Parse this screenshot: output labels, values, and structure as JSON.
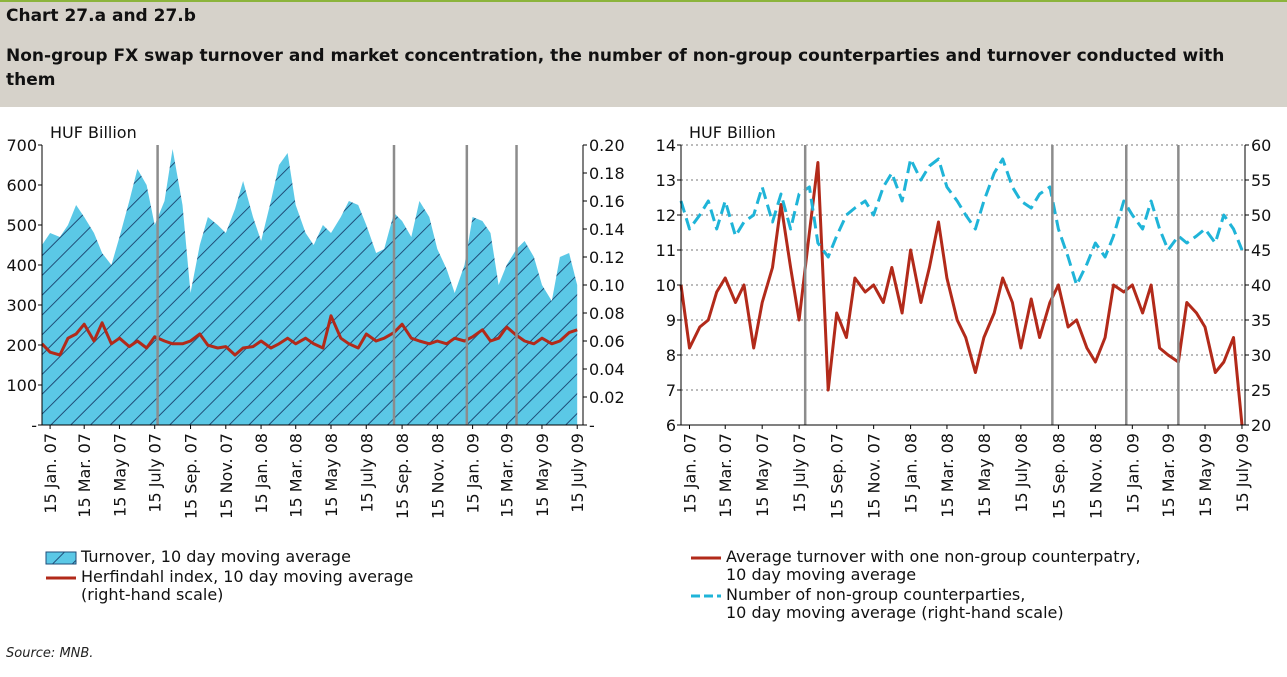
{
  "header": {
    "title": "Chart 27.a and 27.b",
    "subtitle": "Non-group FX swap turnover and market concentration, the number of non-group counterparties and turnover conducted with them"
  },
  "source": "Source: MNB.",
  "chart_data": [
    {
      "type": "combo",
      "ylabel": "HUF Billion",
      "x": [
        "2007-01-01",
        "2007-01-15",
        "2007-02-01",
        "2007-02-15",
        "2007-03-01",
        "2007-03-15",
        "2007-04-01",
        "2007-04-15",
        "2007-05-01",
        "2007-05-15",
        "2007-06-01",
        "2007-06-15",
        "2007-07-01",
        "2007-07-15",
        "2007-08-01",
        "2007-08-15",
        "2007-09-01",
        "2007-09-15",
        "2007-10-01",
        "2007-10-15",
        "2007-11-01",
        "2007-11-15",
        "2007-12-01",
        "2007-12-15",
        "2008-01-01",
        "2008-01-15",
        "2008-02-01",
        "2008-02-15",
        "2008-03-01",
        "2008-03-15",
        "2008-04-01",
        "2008-04-15",
        "2008-05-01",
        "2008-05-15",
        "2008-06-01",
        "2008-06-15",
        "2008-07-01",
        "2008-07-15",
        "2008-08-01",
        "2008-08-15",
        "2008-09-01",
        "2008-09-15",
        "2008-10-01",
        "2008-10-15",
        "2008-11-01",
        "2008-11-15",
        "2008-12-01",
        "2008-12-15",
        "2009-01-01",
        "2009-01-15",
        "2009-02-01",
        "2009-02-15",
        "2009-03-01",
        "2009-03-15",
        "2009-04-01",
        "2009-04-15",
        "2009-05-01",
        "2009-05-15",
        "2009-06-01",
        "2009-06-15",
        "2009-07-01",
        "2009-07-15"
      ],
      "xlim": [
        "2007-01-01",
        "2009-07-25"
      ],
      "xticks": [
        {
          "value": "2007-01-15",
          "label": "15 Jan. 07"
        },
        {
          "value": "2007-03-15",
          "label": "15 Mar. 07"
        },
        {
          "value": "2007-05-15",
          "label": "15 May 07"
        },
        {
          "value": "2007-07-15",
          "label": "15 July 07"
        },
        {
          "value": "2007-09-15",
          "label": "15 Sep. 07"
        },
        {
          "value": "2007-11-15",
          "label": "15 Nov. 07"
        },
        {
          "value": "2008-01-15",
          "label": "15 Jan. 08"
        },
        {
          "value": "2008-03-15",
          "label": "15 Mar. 08"
        },
        {
          "value": "2008-05-15",
          "label": "15 May 08"
        },
        {
          "value": "2008-07-15",
          "label": "15 July 08"
        },
        {
          "value": "2008-09-15",
          "label": "15 Sep. 08"
        },
        {
          "value": "2008-11-15",
          "label": "15 Nov. 08"
        },
        {
          "value": "2009-01-15",
          "label": "15 Jan. 09"
        },
        {
          "value": "2009-03-15",
          "label": "15 Mar. 09"
        },
        {
          "value": "2009-05-15",
          "label": "15 May 09"
        },
        {
          "value": "2009-07-15",
          "label": "15 July 09"
        }
      ],
      "ylim": [
        0,
        700
      ],
      "yticks": [
        {
          "value": 0,
          "label": "-"
        },
        100,
        200,
        300,
        400,
        500,
        600,
        700
      ],
      "y2lim": [
        0,
        0.2
      ],
      "y2ticks": [
        {
          "value": 0,
          "label": "-"
        },
        0.02,
        0.04,
        0.06,
        0.08,
        {
          "value": 0.1,
          "label": "0.10"
        },
        0.12,
        0.14,
        0.16,
        0.18,
        {
          "value": 0.2,
          "label": "0.20"
        }
      ],
      "grid": false,
      "vlines": [
        "2007-07-20",
        "2008-09-01",
        "2009-01-05",
        "2009-04-01"
      ],
      "series": [
        {
          "name": "Turnover, 10 day moving average",
          "kind": "area",
          "color": "#5bc8e6",
          "hatch": "#1f4e79",
          "values": [
            450,
            480,
            470,
            500,
            550,
            520,
            480,
            430,
            400,
            470,
            560,
            640,
            600,
            500,
            560,
            690,
            550,
            330,
            450,
            520,
            500,
            480,
            540,
            610,
            520,
            460,
            560,
            650,
            680,
            550,
            480,
            450,
            500,
            480,
            520,
            560,
            550,
            500,
            430,
            440,
            530,
            510,
            470,
            560,
            520,
            440,
            390,
            330,
            400,
            520,
            510,
            480,
            350,
            400,
            440,
            460,
            420,
            350,
            310,
            420,
            430,
            350
          ]
        },
        {
          "name": "Herfindahl index, 10 day moving average\n(right-hand scale)",
          "kind": "line",
          "axis": "y2",
          "color": "#b22a1a",
          "values": [
            0.058,
            0.052,
            0.05,
            0.062,
            0.065,
            0.072,
            0.06,
            0.073,
            0.058,
            0.062,
            0.056,
            0.06,
            0.055,
            0.063,
            0.06,
            0.058,
            0.058,
            0.06,
            0.065,
            0.057,
            0.055,
            0.056,
            0.05,
            0.055,
            0.056,
            0.06,
            0.055,
            0.058,
            0.062,
            0.058,
            0.062,
            0.058,
            0.055,
            0.078,
            0.062,
            0.058,
            0.055,
            0.065,
            0.06,
            0.062,
            0.066,
            0.072,
            0.062,
            0.06,
            0.058,
            0.06,
            0.058,
            0.062,
            0.06,
            0.063,
            0.068,
            0.06,
            0.062,
            0.07,
            0.064,
            0.06,
            0.058,
            0.062,
            0.058,
            0.06,
            0.066,
            0.068
          ]
        }
      ]
    },
    {
      "type": "line",
      "ylabel": "HUF Billion",
      "x": [
        "2007-01-01",
        "2007-01-15",
        "2007-02-01",
        "2007-02-15",
        "2007-03-01",
        "2007-03-15",
        "2007-04-01",
        "2007-04-15",
        "2007-05-01",
        "2007-05-15",
        "2007-06-01",
        "2007-06-15",
        "2007-07-01",
        "2007-07-15",
        "2007-08-01",
        "2007-08-15",
        "2007-09-01",
        "2007-09-15",
        "2007-10-01",
        "2007-10-15",
        "2007-11-01",
        "2007-11-15",
        "2007-12-01",
        "2007-12-15",
        "2008-01-01",
        "2008-01-15",
        "2008-02-01",
        "2008-02-15",
        "2008-03-01",
        "2008-03-15",
        "2008-04-01",
        "2008-04-15",
        "2008-05-01",
        "2008-05-15",
        "2008-06-01",
        "2008-06-15",
        "2008-07-01",
        "2008-07-15",
        "2008-08-01",
        "2008-08-15",
        "2008-09-01",
        "2008-09-15",
        "2008-10-01",
        "2008-10-15",
        "2008-11-01",
        "2008-11-15",
        "2008-12-01",
        "2008-12-15",
        "2009-01-01",
        "2009-01-15",
        "2009-02-01",
        "2009-02-15",
        "2009-03-01",
        "2009-03-15",
        "2009-04-01",
        "2009-04-15",
        "2009-05-01",
        "2009-05-15",
        "2009-06-01",
        "2009-06-15",
        "2009-07-01",
        "2009-07-15"
      ],
      "xlim": [
        "2007-01-01",
        "2009-07-20"
      ],
      "xticks": [
        {
          "value": "2007-01-15",
          "label": "15 Jan. 07"
        },
        {
          "value": "2007-03-15",
          "label": "15 Mar. 07"
        },
        {
          "value": "2007-05-15",
          "label": "15 May 07"
        },
        {
          "value": "2007-07-15",
          "label": "15 July 07"
        },
        {
          "value": "2007-09-15",
          "label": "15 Sep. 07"
        },
        {
          "value": "2007-11-15",
          "label": "15 Nov. 07"
        },
        {
          "value": "2008-01-15",
          "label": "15 Jan. 08"
        },
        {
          "value": "2008-03-15",
          "label": "15 Mar. 08"
        },
        {
          "value": "2008-05-15",
          "label": "15 May 08"
        },
        {
          "value": "2008-07-15",
          "label": "15 July 08"
        },
        {
          "value": "2008-09-15",
          "label": "15 Sep. 08"
        },
        {
          "value": "2008-11-15",
          "label": "15 Nov. 08"
        },
        {
          "value": "2009-01-15",
          "label": "15 Jan. 09"
        },
        {
          "value": "2009-03-15",
          "label": "15 Mar. 09"
        },
        {
          "value": "2009-05-15",
          "label": "15 May 09"
        },
        {
          "value": "2009-07-15",
          "label": "15 July 09"
        }
      ],
      "ylim": [
        6,
        14
      ],
      "yticks": [
        6,
        7,
        8,
        9,
        10,
        11,
        12,
        13,
        14
      ],
      "y2lim": [
        20,
        60
      ],
      "y2ticks": [
        20,
        25,
        30,
        35,
        40,
        45,
        50,
        55,
        60
      ],
      "grid": true,
      "vlines": [
        "2007-07-25",
        "2008-09-05",
        "2009-01-05",
        "2009-04-01"
      ],
      "series": [
        {
          "name": "Average turnover with one non-group counterpatry,\n10 day moving average",
          "kind": "line",
          "color": "#b22a1a",
          "values": [
            10.0,
            8.2,
            8.8,
            9.0,
            9.8,
            10.2,
            9.5,
            10.0,
            8.2,
            9.5,
            10.5,
            12.3,
            10.5,
            9.0,
            11.5,
            13.5,
            7.0,
            9.2,
            8.5,
            10.2,
            9.8,
            10.0,
            9.5,
            10.5,
            9.2,
            11.0,
            9.5,
            10.5,
            11.8,
            10.2,
            9.0,
            8.5,
            7.5,
            8.5,
            9.2,
            10.2,
            9.5,
            8.2,
            9.6,
            8.5,
            9.5,
            10.0,
            8.8,
            9.0,
            8.2,
            7.8,
            8.5,
            10.0,
            9.8,
            10.0,
            9.2,
            10.0,
            8.2,
            8.0,
            7.8,
            9.5,
            9.2,
            8.8,
            7.5,
            7.8,
            8.5,
            6.0
          ]
        },
        {
          "name": "Number of non-group counterparties,\n10 day moving average (right-hand scale)",
          "kind": "line",
          "axis": "y2",
          "dashed": true,
          "color": "#1fb4d8",
          "values": [
            52,
            48,
            50,
            52,
            48,
            52,
            47,
            49,
            50,
            54,
            49,
            53,
            48,
            53,
            54,
            46,
            44,
            47,
            50,
            51,
            52,
            50,
            54,
            56,
            52,
            58,
            55,
            57,
            58,
            54,
            52,
            50,
            48,
            52,
            56,
            58,
            54,
            52,
            51,
            53,
            54,
            48,
            44,
            40,
            43,
            46,
            44,
            47,
            52,
            50,
            48,
            52,
            48,
            45,
            47,
            46,
            47,
            48,
            46,
            50,
            48,
            45
          ]
        }
      ]
    }
  ]
}
